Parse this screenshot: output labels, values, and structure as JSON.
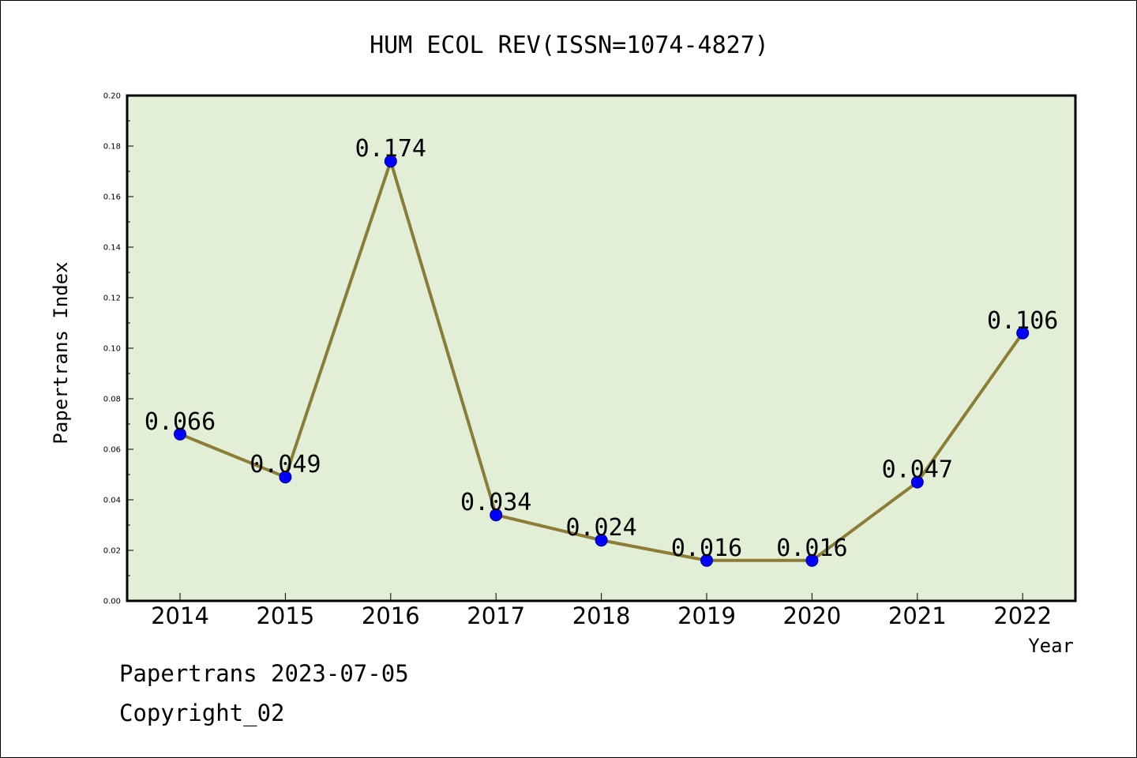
{
  "chart_data": {
    "type": "line",
    "title": "HUM ECOL REV(ISSN=1074-4827)",
    "xlabel": "Year",
    "ylabel": "Papertrans Index",
    "categories": [
      "2014",
      "2015",
      "2016",
      "2017",
      "2018",
      "2019",
      "2020",
      "2021",
      "2022"
    ],
    "series": [
      {
        "values": [
          0.066,
          0.049,
          0.174,
          0.034,
          0.024,
          0.016,
          0.016,
          0.047,
          0.106
        ]
      }
    ],
    "data_labels": [
      "0.066",
      "0.049",
      "0.174",
      "0.034",
      "0.024",
      "0.016",
      "0.016",
      "0.047",
      "0.106"
    ],
    "ylim": [
      0.0,
      0.2
    ],
    "yticks": [
      "0.00",
      "0.02",
      "0.04",
      "0.06",
      "0.08",
      "0.10",
      "0.12",
      "0.14",
      "0.16",
      "0.18",
      "0.20"
    ],
    "grid": false,
    "legend": "none",
    "colors": {
      "plot_background": "#e2efd6",
      "line": "#8b7d35",
      "marker": "#0000ff",
      "marker_edge": "#00008b",
      "axes": "#000000"
    }
  },
  "footer": {
    "line1": "Papertrans 2023-07-05",
    "line2": "Copyright_02"
  }
}
